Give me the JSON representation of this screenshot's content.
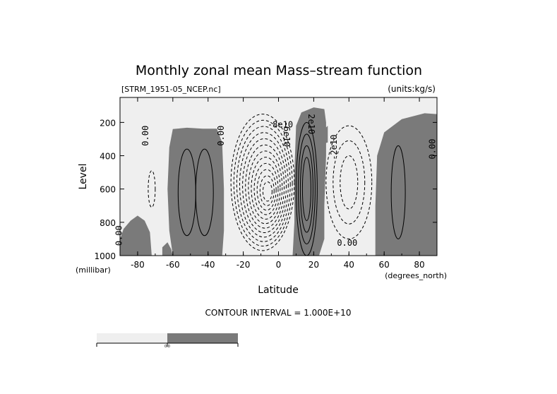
{
  "chart_data": {
    "type": "contour",
    "title": "Monthly zonal mean Mass–stream function",
    "source_file": "[STRM_1951-05_NCEP.nc]",
    "units": "(units:kg/s)",
    "xlabel": "Latitude",
    "ylabel": "Level",
    "x_unit": "(degrees_north)",
    "y_unit": "(millibar)",
    "xlim": [
      -90,
      90
    ],
    "ylim": [
      1000,
      50
    ],
    "y_inverted": true,
    "x_ticks": [
      -80,
      -60,
      -40,
      -20,
      0,
      20,
      40,
      60,
      80
    ],
    "y_ticks": [
      200,
      400,
      600,
      800,
      1000
    ],
    "contour_interval_text": "CONTOUR INTERVAL = 1.000E+10",
    "contour_labels": [
      "0.00",
      "0.00",
      "0.00",
      "0.00",
      "0.00",
      "2e10",
      "-2e10",
      "-8e10",
      "-6e10"
    ],
    "colorbar": {
      "tick_labels": [
        "-",
        "0.0",
        "-"
      ],
      "colors": [
        "#efefef",
        "#7a7a7a"
      ]
    },
    "fill_colors": {
      "negative": "#efefef",
      "positive": "#7a7a7a"
    }
  }
}
